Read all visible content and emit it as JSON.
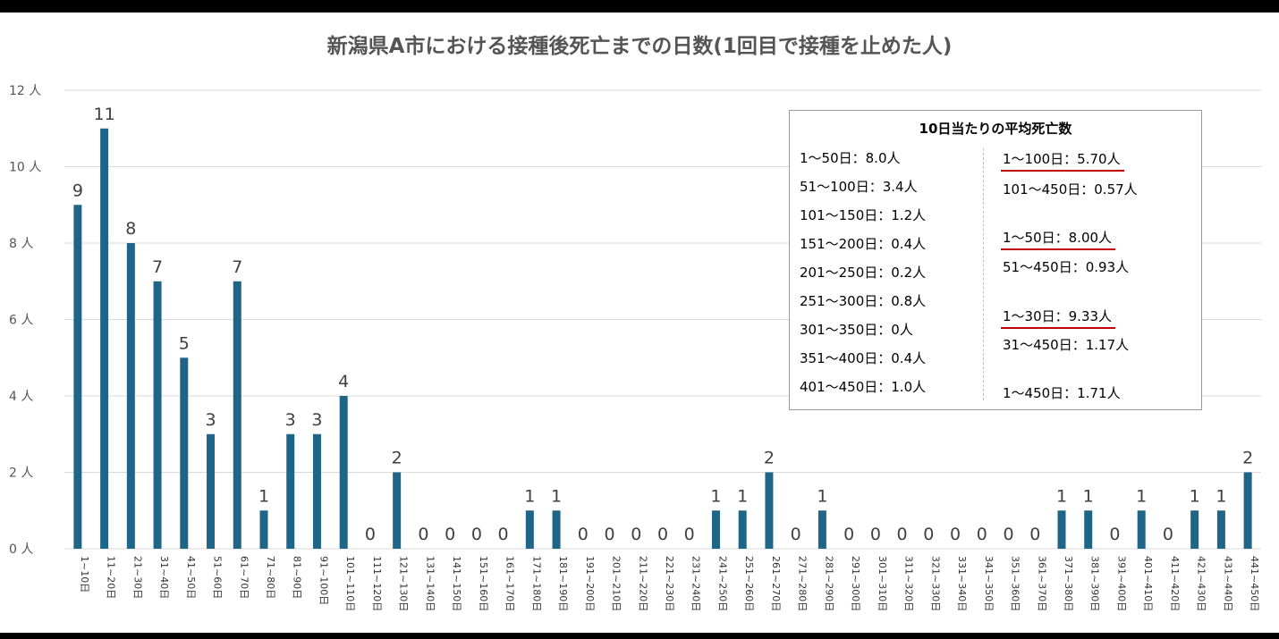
{
  "chart_data": {
    "type": "bar",
    "title": "新潟県A市における接種後死亡までの日数(1回目で接種を止めた人)",
    "ylabel": "",
    "xlabel": "",
    "ylim": [
      0,
      12
    ],
    "yticks": [
      "0 人",
      "2 人",
      "4 人",
      "6 人",
      "8 人",
      "10 人",
      "12 人"
    ],
    "grid": true,
    "bar_color": "#1f6588",
    "categories": [
      "1~10日",
      "11~20日",
      "21~30日",
      "31~40日",
      "41~50日",
      "51~60日",
      "61~70日",
      "71~80日",
      "81~90日",
      "91~100日",
      "101~110日",
      "111~120日",
      "121~130日",
      "131~140日",
      "141~150日",
      "151~160日",
      "161~170日",
      "171~180日",
      "181~190日",
      "191~200日",
      "201~210日",
      "211~220日",
      "221~230日",
      "231~240日",
      "241~250日",
      "251~260日",
      "261~270日",
      "271~280日",
      "281~290日",
      "291~300日",
      "301~310日",
      "311~320日",
      "321~330日",
      "331~340日",
      "341~350日",
      "351~360日",
      "361~370日",
      "371~380日",
      "381~390日",
      "391~400日",
      "401~410日",
      "411~420日",
      "421~430日",
      "431~440日",
      "441~450日"
    ],
    "values": [
      9,
      11,
      8,
      7,
      5,
      3,
      7,
      1,
      3,
      3,
      4,
      0,
      2,
      0,
      0,
      0,
      0,
      1,
      1,
      0,
      0,
      0,
      0,
      0,
      1,
      1,
      2,
      0,
      1,
      0,
      0,
      0,
      0,
      0,
      0,
      0,
      0,
      1,
      1,
      0,
      1,
      0,
      1,
      1,
      2
    ]
  },
  "info_box": {
    "title": "10日当たりの平均死亡数",
    "left": [
      "1～50日：8.0人",
      "51～100日：3.4人",
      "101～150日：1.2人",
      "151～200日：0.4人",
      "201～250日：0.2人",
      "251～300日：0.8人",
      "301～350日：0人",
      "351～400日：0.4人",
      "401～450日：1.0人"
    ],
    "right": [
      {
        "text": "1～100日：5.70人",
        "highlight": true
      },
      {
        "text": "101～450日：0.57人",
        "highlight": false
      },
      {
        "text": "1～50日：8.00人",
        "highlight": true
      },
      {
        "text": "51～450日：0.93人",
        "highlight": false
      },
      {
        "text": "1～30日：9.33人",
        "highlight": true
      },
      {
        "text": "31～450日：1.17人",
        "highlight": false
      },
      {
        "text": "1～450日：1.71人",
        "highlight": false
      }
    ],
    "highlight_color": "#c00000"
  }
}
